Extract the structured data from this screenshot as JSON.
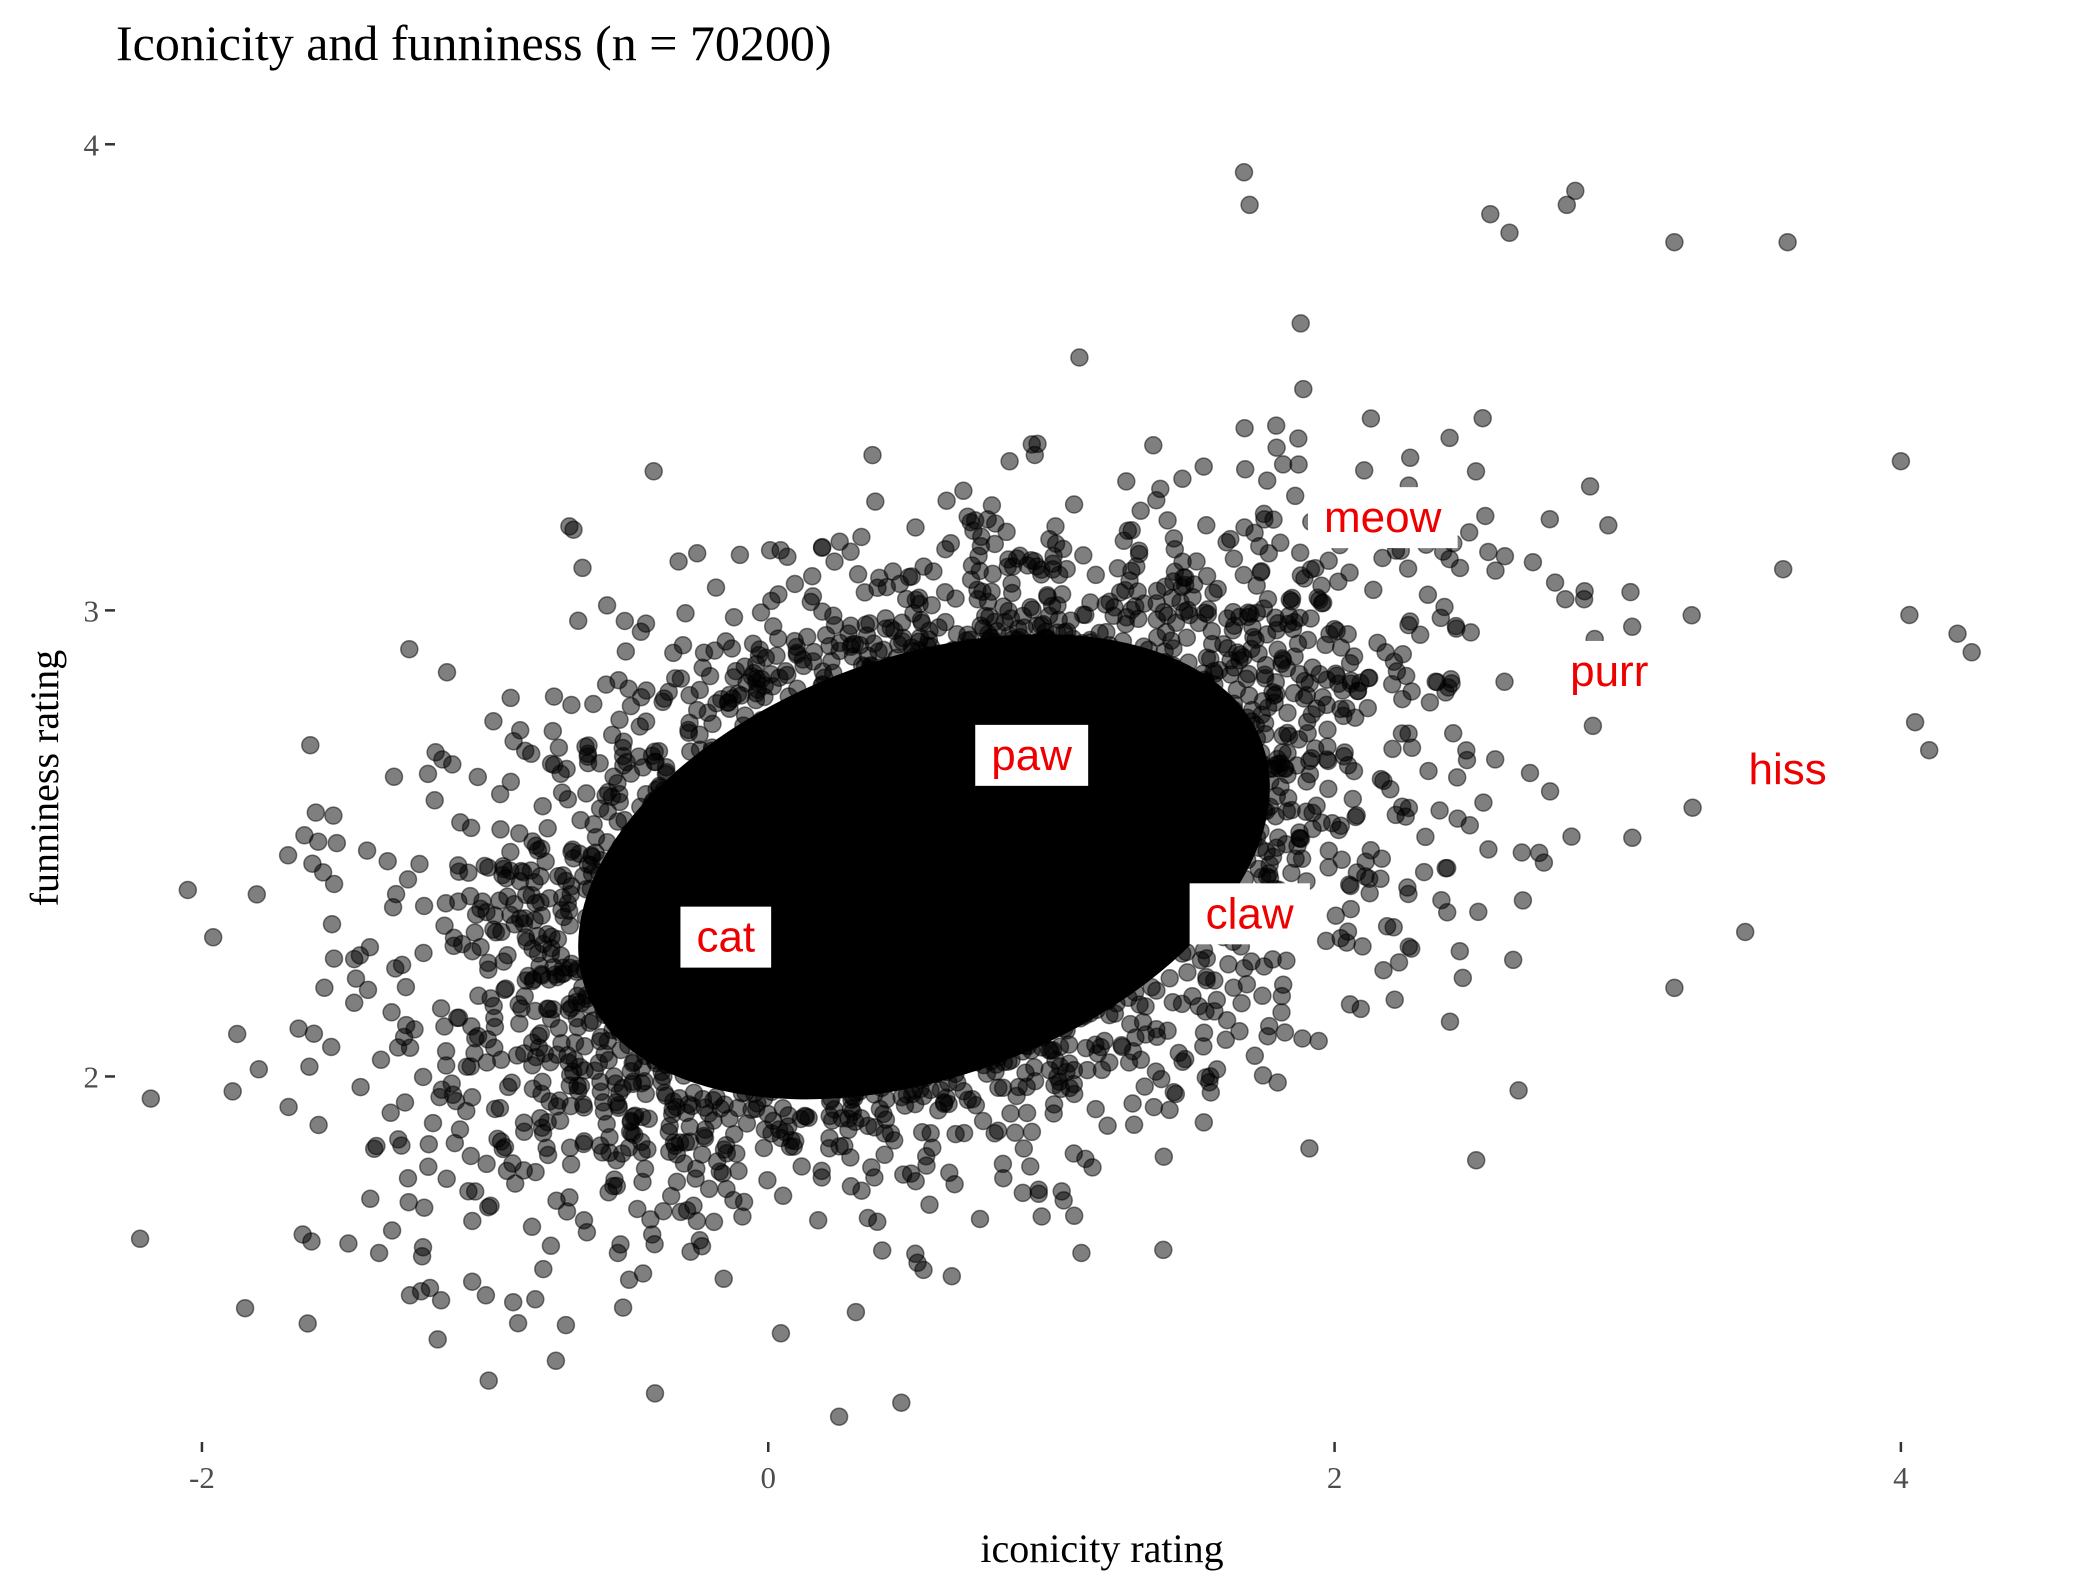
{
  "chart_data": {
    "type": "scatter",
    "title": "Iconicity and funniness (n = 70200)",
    "xlabel": "iconicity rating",
    "ylabel": "funniness rating",
    "xlim": [
      -2.3,
      4.35
    ],
    "ylim": [
      1.22,
      4.08
    ],
    "xticks": [
      -2,
      0,
      2,
      4
    ],
    "xtick_labels": [
      "-2",
      "0",
      "2",
      "4"
    ],
    "yticks": [
      2,
      3,
      4
    ],
    "ytick_labels": [
      "2",
      "3",
      "4"
    ],
    "grid": false,
    "legend": "none",
    "n_points": 70200,
    "point_color": "#000000",
    "point_opacity": 0.5,
    "distribution": {
      "x_mean": 0.55,
      "x_sd": 0.8,
      "y_mean": 2.45,
      "y_sd": 0.33,
      "correlation": 0.45
    },
    "outliers": [
      {
        "x": -2.05,
        "y": 2.4
      },
      {
        "x": 1.68,
        "y": 3.94
      },
      {
        "x": 1.7,
        "y": 3.87
      },
      {
        "x": 2.85,
        "y": 3.9
      },
      {
        "x": 2.82,
        "y": 3.87
      },
      {
        "x": 2.55,
        "y": 3.85
      },
      {
        "x": 3.6,
        "y": 3.79
      },
      {
        "x": 3.2,
        "y": 3.79
      },
      {
        "x": 4.0,
        "y": 3.32
      },
      {
        "x": 4.2,
        "y": 2.95
      },
      {
        "x": 4.25,
        "y": 2.91
      },
      {
        "x": 4.1,
        "y": 2.7
      },
      {
        "x": 4.05,
        "y": 2.76
      },
      {
        "x": 4.03,
        "y": 2.99
      },
      {
        "x": 3.45,
        "y": 2.31
      },
      {
        "x": 3.2,
        "y": 2.19
      },
      {
        "x": 2.65,
        "y": 1.97
      },
      {
        "x": 0.25,
        "y": 1.27
      },
      {
        "x": 0.47,
        "y": 1.3
      },
      {
        "x": -0.4,
        "y": 1.32
      },
      {
        "x": -0.75,
        "y": 1.39
      },
      {
        "x": 2.5,
        "y": 1.82
      }
    ],
    "annotations": [
      {
        "label": "cat",
        "x": -0.15,
        "y": 2.3
      },
      {
        "label": "paw",
        "x": 0.93,
        "y": 2.69
      },
      {
        "label": "claw",
        "x": 1.7,
        "y": 2.35
      },
      {
        "label": "meow",
        "x": 2.17,
        "y": 3.2
      },
      {
        "label": "purr",
        "x": 2.97,
        "y": 2.87
      },
      {
        "label": "hiss",
        "x": 3.6,
        "y": 2.66
      }
    ],
    "annotation_text_color": "#ee0000",
    "annotation_fill": "#ffffff"
  }
}
